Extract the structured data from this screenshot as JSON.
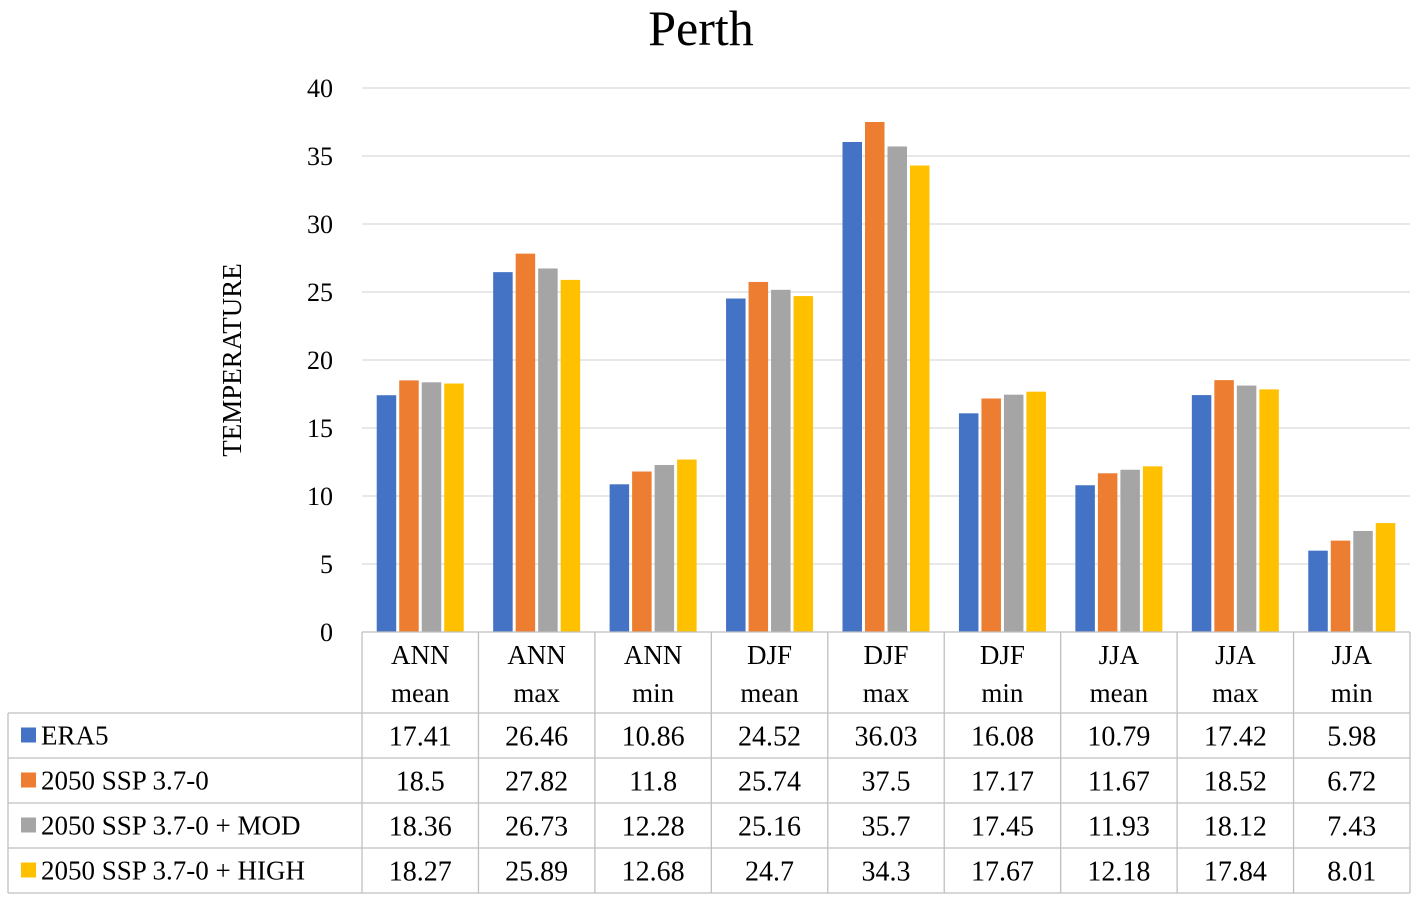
{
  "chart_data": {
    "type": "bar",
    "title": "Perth",
    "ylabel": "TEMPERATURE",
    "xlabel": "",
    "ylim": [
      0,
      40
    ],
    "yticks": [
      0,
      5,
      10,
      15,
      20,
      25,
      30,
      35,
      40
    ],
    "grid": true,
    "legend": "data-table",
    "categories": [
      [
        "ANN",
        "mean"
      ],
      [
        "ANN",
        "max"
      ],
      [
        "ANN",
        "min"
      ],
      [
        "DJF",
        "mean"
      ],
      [
        "DJF",
        "max"
      ],
      [
        "DJF",
        "min"
      ],
      [
        "JJA",
        "mean"
      ],
      [
        "JJA",
        "max"
      ],
      [
        "JJA",
        "min"
      ]
    ],
    "series": [
      {
        "name": "ERA5",
        "color": "#4472C4",
        "values": [
          17.41,
          26.46,
          10.86,
          24.52,
          36.03,
          16.08,
          10.79,
          17.42,
          5.98
        ],
        "labels": [
          "17.41",
          "26.46",
          "10.86",
          "24.52",
          "36.03",
          "16.08",
          "10.79",
          "17.42",
          "5.98"
        ]
      },
      {
        "name": "2050 SSP 3.7-0",
        "color": "#ED7D31",
        "values": [
          18.5,
          27.82,
          11.8,
          25.74,
          37.5,
          17.17,
          11.67,
          18.52,
          6.72
        ],
        "labels": [
          "18.5",
          "27.82",
          "11.8",
          "25.74",
          "37.5",
          "17.17",
          "11.67",
          "18.52",
          "6.72"
        ]
      },
      {
        "name": "2050 SSP 3.7-0 + MOD",
        "color": "#A5A5A5",
        "values": [
          18.36,
          26.73,
          12.28,
          25.16,
          35.7,
          17.45,
          11.93,
          18.12,
          7.43
        ],
        "labels": [
          "18.36",
          "26.73",
          "12.28",
          "25.16",
          "35.7",
          "17.45",
          "11.93",
          "18.12",
          "7.43"
        ]
      },
      {
        "name": "2050 SSP 3.7-0 + HIGH",
        "color": "#FFC000",
        "values": [
          18.27,
          25.89,
          12.68,
          24.7,
          34.3,
          17.67,
          12.18,
          17.84,
          8.01
        ],
        "labels": [
          "18.27",
          "25.89",
          "12.68",
          "24.7",
          "34.3",
          "17.67",
          "12.18",
          "17.84",
          "8.01"
        ]
      }
    ]
  }
}
